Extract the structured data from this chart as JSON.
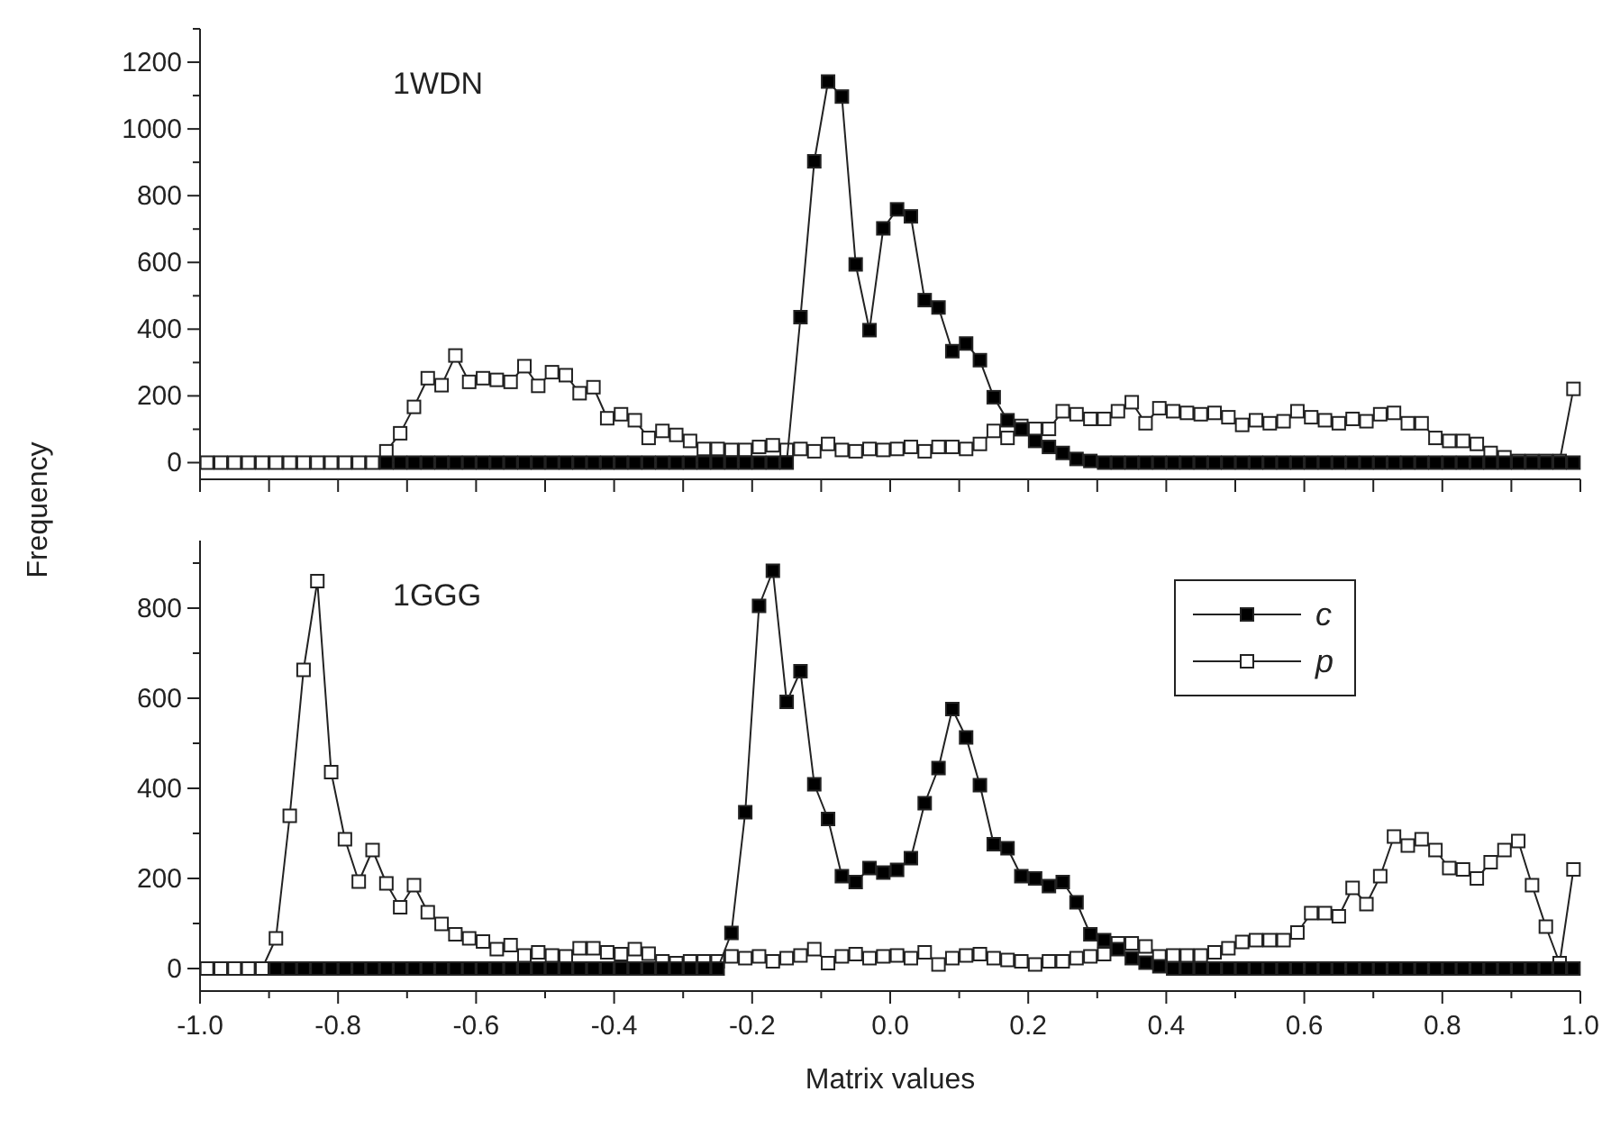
{
  "chart_data": [
    {
      "type": "line",
      "ylabel": "Frequency",
      "annotations": [
        "1WDN"
      ],
      "marker": "square",
      "legend": false,
      "tick_labels": "y",
      "x": [
        -0.99,
        -0.97,
        -0.95,
        -0.93,
        -0.91,
        -0.89,
        -0.87,
        -0.85,
        -0.83,
        -0.81,
        -0.79,
        -0.77,
        -0.75,
        -0.73,
        -0.71,
        -0.69,
        -0.67,
        -0.65,
        -0.63,
        -0.61,
        -0.59,
        -0.57,
        -0.55,
        -0.53,
        -0.51,
        -0.49,
        -0.47,
        -0.45,
        -0.43,
        -0.41,
        -0.39,
        -0.37,
        -0.35,
        -0.33,
        -0.31,
        -0.29,
        -0.27,
        -0.25,
        -0.23,
        -0.21,
        -0.19,
        -0.17,
        -0.15,
        -0.13,
        -0.11,
        -0.09,
        -0.07,
        -0.05,
        -0.03,
        -0.01,
        0.01,
        0.03,
        0.05,
        0.07,
        0.09,
        0.11,
        0.13,
        0.15,
        0.17,
        0.19,
        0.21,
        0.23,
        0.25,
        0.27,
        0.29,
        0.31,
        0.33,
        0.35,
        0.37,
        0.39,
        0.41,
        0.43,
        0.45,
        0.47,
        0.49,
        0.51,
        0.53,
        0.55,
        0.57,
        0.59,
        0.61,
        0.63,
        0.65,
        0.67,
        0.69,
        0.71,
        0.73,
        0.75,
        0.77,
        0.79,
        0.81,
        0.83,
        0.85,
        0.87,
        0.89,
        0.91,
        0.93,
        0.95,
        0.97,
        0.99
      ],
      "xlim": [
        -1,
        1
      ],
      "xticks": [
        -1,
        -0.9,
        -0.8,
        -0.7,
        -0.6,
        -0.5,
        -0.4,
        -0.3,
        -0.2,
        -0.1,
        0,
        0.1,
        0.2,
        0.3,
        0.4,
        0.5,
        0.6,
        0.7,
        0.8,
        0.9,
        1
      ],
      "ylim": [
        -50,
        1300
      ],
      "yticks": [
        0,
        {
          "value": 100,
          "label": null
        },
        200,
        {
          "value": 300,
          "label": null
        },
        400,
        {
          "value": 500,
          "label": null
        },
        600,
        {
          "value": 700,
          "label": null
        },
        800,
        {
          "value": 900,
          "label": null
        },
        1000,
        {
          "value": 1100,
          "label": null
        },
        1200,
        {
          "value": 1300,
          "label": null
        }
      ],
      "series": [
        {
          "color": "#ffffff",
          "values": [
            0,
            0,
            0,
            0,
            0,
            0,
            0,
            0,
            0,
            0,
            0,
            0,
            0,
            34,
            88,
            167,
            253,
            232,
            321,
            242,
            253,
            248,
            242,
            289,
            230,
            271,
            262,
            208,
            226,
            133,
            145,
            127,
            74,
            95,
            83,
            65,
            41,
            41,
            38,
            38,
            47,
            52,
            38,
            41,
            34,
            56,
            38,
            34,
            41,
            38,
            41,
            47,
            34,
            47,
            47,
            41,
            56,
            95,
            74,
            110,
            101,
            101,
            154,
            145,
            131,
            131,
            154,
            181,
            118,
            163,
            154,
            149,
            145,
            149,
            136,
            113,
            127,
            118,
            124,
            154,
            136,
            127,
            118,
            131,
            124,
            145,
            149,
            118,
            118,
            74,
            65,
            65,
            56,
            29,
            16,
            5,
            5,
            5,
            5,
            221
          ]
        },
        {
          "color": "#000000",
          "values": [
            null,
            null,
            null,
            null,
            null,
            null,
            null,
            null,
            null,
            null,
            null,
            null,
            null,
            0,
            0,
            0,
            0,
            0,
            0,
            0,
            0,
            0,
            0,
            0,
            0,
            0,
            0,
            0,
            0,
            0,
            0,
            0,
            0,
            0,
            0,
            0,
            0,
            0,
            0,
            0,
            0,
            0,
            0,
            436,
            903,
            1142,
            1097,
            594,
            397,
            702,
            759,
            738,
            487,
            465,
            334,
            357,
            307,
            196,
            127,
            100,
            65,
            47,
            29,
            11,
            5,
            0,
            0,
            0,
            0,
            0,
            0,
            0,
            0,
            0,
            0,
            0,
            0,
            0,
            0,
            0,
            0,
            0,
            0,
            0,
            0,
            0,
            0,
            0,
            0,
            0,
            0,
            0,
            0,
            0,
            0,
            0,
            0,
            0,
            0,
            0
          ]
        }
      ]
    },
    {
      "type": "line",
      "xlabel": "Matrix values",
      "annotations": [
        "1GGG"
      ],
      "marker": "square",
      "legend": "top right",
      "x": [
        -0.99,
        -0.97,
        -0.95,
        -0.93,
        -0.91,
        -0.89,
        -0.87,
        -0.85,
        -0.83,
        -0.81,
        -0.79,
        -0.77,
        -0.75,
        -0.73,
        -0.71,
        -0.69,
        -0.67,
        -0.65,
        -0.63,
        -0.61,
        -0.59,
        -0.57,
        -0.55,
        -0.53,
        -0.51,
        -0.49,
        -0.47,
        -0.45,
        -0.43,
        -0.41,
        -0.39,
        -0.37,
        -0.35,
        -0.33,
        -0.31,
        -0.29,
        -0.27,
        -0.25,
        -0.23,
        -0.21,
        -0.19,
        -0.17,
        -0.15,
        -0.13,
        -0.11,
        -0.09,
        -0.07,
        -0.05,
        -0.03,
        -0.01,
        0.01,
        0.03,
        0.05,
        0.07,
        0.09,
        0.11,
        0.13,
        0.15,
        0.17,
        0.19,
        0.21,
        0.23,
        0.25,
        0.27,
        0.29,
        0.31,
        0.33,
        0.35,
        0.37,
        0.39,
        0.41,
        0.43,
        0.45,
        0.47,
        0.49,
        0.51,
        0.53,
        0.55,
        0.57,
        0.59,
        0.61,
        0.63,
        0.65,
        0.67,
        0.69,
        0.71,
        0.73,
        0.75,
        0.77,
        0.79,
        0.81,
        0.83,
        0.85,
        0.87,
        0.89,
        0.91,
        0.93,
        0.95,
        0.97,
        0.99
      ],
      "xlim": [
        -1,
        1
      ],
      "xticks": [
        {
          "value": -1,
          "label": "-1.0"
        },
        {
          "value": -0.9,
          "label": null
        },
        {
          "value": -0.8,
          "label": "-0.8"
        },
        {
          "value": -0.7,
          "label": null
        },
        {
          "value": -0.6,
          "label": "-0.6"
        },
        {
          "value": -0.5,
          "label": null
        },
        {
          "value": -0.4,
          "label": "-0.4"
        },
        {
          "value": -0.3,
          "label": null
        },
        {
          "value": -0.2,
          "label": "-0.2"
        },
        {
          "value": -0.1,
          "label": null
        },
        {
          "value": 0,
          "label": "0.0"
        },
        {
          "value": 0.1,
          "label": null
        },
        {
          "value": 0.2,
          "label": "0.2"
        },
        {
          "value": 0.3,
          "label": null
        },
        {
          "value": 0.4,
          "label": "0.4"
        },
        {
          "value": 0.5,
          "label": null
        },
        {
          "value": 0.6,
          "label": "0.6"
        },
        {
          "value": 0.7,
          "label": null
        },
        {
          "value": 0.8,
          "label": "0.8"
        },
        {
          "value": 0.9,
          "label": null
        },
        {
          "value": 1,
          "label": "1.0"
        }
      ],
      "ylim": [
        -50,
        950
      ],
      "yticks": [
        0,
        {
          "value": 100,
          "label": null
        },
        200,
        {
          "value": 300,
          "label": null
        },
        400,
        {
          "value": 500,
          "label": null
        },
        600,
        {
          "value": 700,
          "label": null
        },
        800,
        {
          "value": 900,
          "label": null
        }
      ],
      "series": [
        {
          "name": "p",
          "color": "#ffffff",
          "values": [
            0,
            0,
            0,
            0,
            0,
            67,
            339,
            663,
            860,
            436,
            287,
            193,
            263,
            189,
            136,
            185,
            125,
            99,
            76,
            67,
            60,
            43,
            52,
            29,
            36,
            29,
            27,
            45,
            45,
            36,
            32,
            43,
            33,
            16,
            12,
            16,
            16,
            16,
            27,
            23,
            27,
            16,
            23,
            29,
            43,
            12,
            27,
            32,
            23,
            27,
            29,
            23,
            36,
            9,
            23,
            29,
            32,
            23,
            19,
            16,
            9,
            16,
            16,
            23,
            27,
            32,
            56,
            56,
            49,
            27,
            29,
            29,
            29,
            36,
            45,
            59,
            63,
            63,
            63,
            80,
            123,
            123,
            116,
            179,
            143,
            205,
            293,
            273,
            287,
            263,
            223,
            220,
            200,
            236,
            263,
            283,
            185,
            93,
            12,
            220
          ]
        },
        {
          "name": "c",
          "color": "#000000",
          "values": [
            null,
            null,
            null,
            null,
            null,
            0,
            0,
            0,
            0,
            0,
            0,
            0,
            0,
            0,
            0,
            0,
            0,
            0,
            0,
            0,
            0,
            0,
            0,
            0,
            0,
            0,
            0,
            0,
            0,
            0,
            0,
            0,
            0,
            0,
            0,
            0,
            0,
            0,
            79,
            347,
            805,
            883,
            592,
            660,
            409,
            332,
            205,
            192,
            223,
            213,
            219,
            245,
            367,
            445,
            576,
            513,
            407,
            276,
            267,
            205,
            200,
            183,
            192,
            147,
            76,
            63,
            43,
            23,
            13,
            5,
            0,
            0,
            0,
            0,
            0,
            0,
            0,
            0,
            0,
            0,
            0,
            0,
            0,
            0,
            0,
            0,
            0,
            0,
            0,
            0,
            0,
            0,
            0,
            0,
            0,
            0,
            0,
            0,
            0,
            0
          ]
        }
      ]
    }
  ]
}
